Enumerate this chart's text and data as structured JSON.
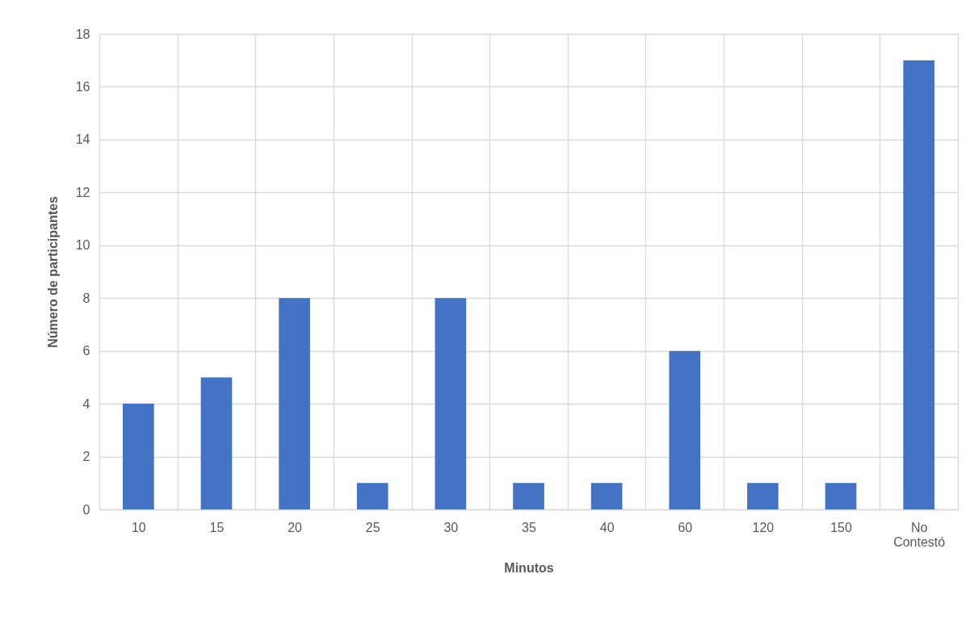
{
  "chart_data": {
    "type": "bar",
    "xlabel": "Minutos",
    "ylabel": "Número de participantes",
    "categories": [
      "10",
      "15",
      "20",
      "25",
      "30",
      "35",
      "40",
      "60",
      "120",
      "150",
      "No Contestó"
    ],
    "series": [
      {
        "color": "#4472c4",
        "values": [
          4,
          5,
          8,
          1,
          8,
          1,
          1,
          6,
          1,
          1,
          17
        ]
      }
    ],
    "ylim": [
      0,
      18
    ],
    "yticks": [
      0,
      2,
      4,
      6,
      8,
      10,
      12,
      14,
      16,
      18
    ],
    "grid": true,
    "legend": false
  }
}
